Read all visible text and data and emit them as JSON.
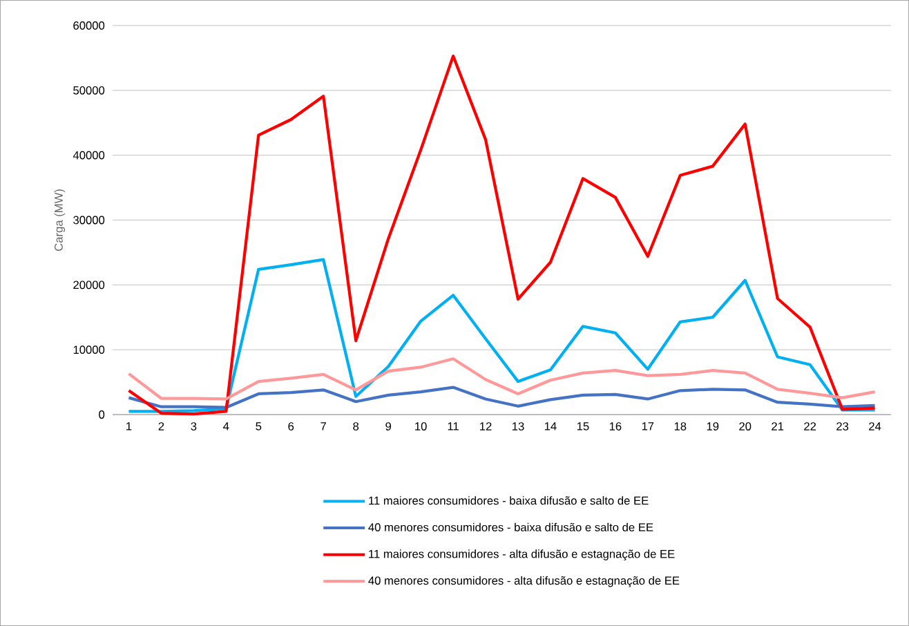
{
  "chart_data": {
    "type": "line",
    "ylabel": "Carga (MW)",
    "categories": [
      "1",
      "2",
      "3",
      "4",
      "5",
      "6",
      "7",
      "8",
      "9",
      "10",
      "11",
      "12",
      "13",
      "14",
      "15",
      "16",
      "17",
      "18",
      "19",
      "20",
      "21",
      "22",
      "23",
      "24"
    ],
    "ylim": [
      0,
      60000
    ],
    "yticks": [
      0,
      10000,
      20000,
      30000,
      40000,
      50000,
      60000
    ],
    "grid": "y",
    "legend": "bottom",
    "marker": "none",
    "line_style": "solid",
    "series": [
      {
        "name": "11 maiores consumidores - baixa difusão e salto de EE",
        "color": "#00b0f0",
        "values": [
          500,
          500,
          600,
          900,
          22400,
          23100,
          23900,
          2800,
          7400,
          14400,
          18400,
          11700,
          5100,
          6900,
          13600,
          12600,
          7000,
          14300,
          15000,
          20700,
          8900,
          7700,
          700,
          700
        ]
      },
      {
        "name": "40 menores consumidores - baixa difusão e salto de EE",
        "color": "#4472c4",
        "values": [
          2600,
          1200,
          1200,
          1100,
          3200,
          3400,
          3800,
          2000,
          3000,
          3500,
          4200,
          2400,
          1300,
          2300,
          3000,
          3100,
          2400,
          3700,
          3900,
          3800,
          1900,
          1600,
          1200,
          1400
        ]
      },
      {
        "name": "11 maiores consumidores - alta difusão e estagnação de EE",
        "color": "#ff0000",
        "values": [
          3700,
          200,
          100,
          500,
          43100,
          45500,
          49100,
          11400,
          27100,
          40800,
          55300,
          42400,
          17800,
          23500,
          36400,
          33500,
          24400,
          36900,
          38300,
          44800,
          17900,
          13500,
          800,
          1000
        ]
      },
      {
        "name": "40 menores consumidores - alta difusão e estagnação de EE",
        "color": "#ff9999",
        "values": [
          6300,
          2500,
          2500,
          2400,
          5100,
          5600,
          6200,
          3800,
          6700,
          7300,
          8600,
          5400,
          3200,
          5300,
          6400,
          6800,
          6000,
          6200,
          6800,
          6400,
          3900,
          3300,
          2600,
          3500
        ]
      }
    ]
  }
}
